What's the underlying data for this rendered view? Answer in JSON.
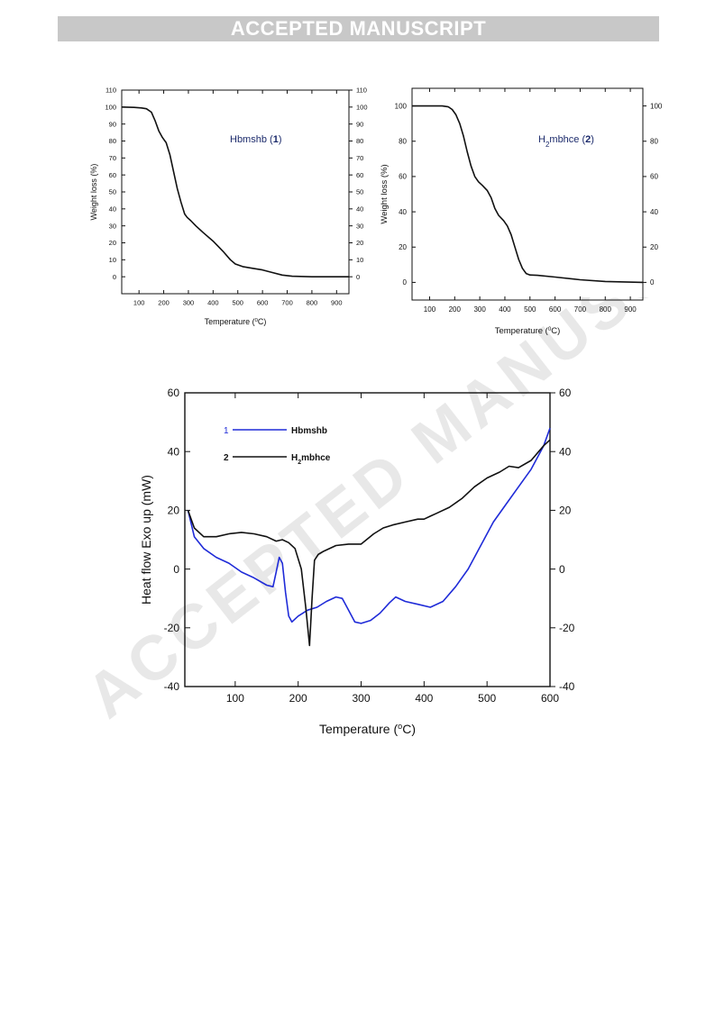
{
  "banner": "ACCEPTED MANUSCRIPT",
  "watermark": "ACCEPTED MANUSCRIPT",
  "colors": {
    "blue": "#1f2bd8",
    "black": "#111111",
    "banner_bg": "#c8c8c8",
    "navy": "#1b2a6b"
  },
  "chart_data": [
    {
      "type": "line",
      "id": "tga1",
      "annotation": {
        "prefix": "Hbmshb (",
        "bold": "1",
        "suffix": ")"
      },
      "xlabel_main": "Temperature (",
      "xlabel_sup": "0",
      "xlabel_end": "C)",
      "ylabel": "Weight loss (%)",
      "xlim": [
        30,
        950
      ],
      "ylim": [
        -10,
        110
      ],
      "xticks": [
        100,
        200,
        300,
        400,
        500,
        600,
        700,
        800,
        900
      ],
      "yticks": [
        0,
        10,
        20,
        30,
        40,
        50,
        60,
        70,
        80,
        90,
        100,
        110
      ],
      "series": [
        {
          "x": [
            30,
            80,
            110,
            130,
            150,
            165,
            180,
            195,
            210,
            225,
            240,
            255,
            270,
            285,
            295,
            310,
            330,
            360,
            400,
            440,
            470,
            490,
            520,
            560,
            600,
            640,
            680,
            720,
            800,
            900,
            950
          ],
          "y": [
            100,
            99.8,
            99.5,
            99,
            97,
            92,
            86,
            82,
            79,
            72,
            62,
            52,
            44,
            37,
            35,
            33,
            30,
            26,
            21,
            15,
            10,
            7.5,
            6,
            5,
            4,
            2.5,
            1,
            0.3,
            0,
            0,
            0
          ]
        }
      ]
    },
    {
      "type": "line",
      "id": "tga2",
      "annotation": {
        "prefix": "H2mbhce (",
        "bold": "2",
        "suffix": ")"
      },
      "xlabel_main": "Temperature (",
      "xlabel_sup": "0",
      "xlabel_end": "C)",
      "ylabel": "Weight loss (%)",
      "xlim": [
        30,
        950
      ],
      "ylim": [
        -10,
        110
      ],
      "xticks": [
        100,
        200,
        300,
        400,
        500,
        600,
        700,
        800,
        900
      ],
      "yticks": [
        0,
        20,
        40,
        60,
        80,
        100
      ],
      "yticks_right": [
        0,
        20,
        40,
        60,
        80,
        100
      ],
      "series": [
        {
          "x": [
            30,
            100,
            150,
            175,
            190,
            205,
            220,
            235,
            250,
            265,
            280,
            295,
            310,
            330,
            345,
            360,
            375,
            395,
            410,
            425,
            440,
            455,
            470,
            485,
            500,
            530,
            600,
            700,
            800,
            950
          ],
          "y": [
            100,
            100,
            100,
            99.5,
            98,
            95,
            90,
            83,
            74,
            66,
            60,
            57,
            55,
            52,
            48,
            42,
            38,
            35,
            32,
            27,
            20,
            13,
            8,
            5,
            4.2,
            4,
            3,
            1.5,
            0.5,
            0
          ]
        }
      ]
    },
    {
      "type": "line",
      "id": "dsc",
      "xlabel_main": "Temperature (",
      "xlabel_sup": "o",
      "xlabel_end": "C)",
      "ylabel": "Heat flow Exo up (mW)",
      "xlim": [
        20,
        600
      ],
      "ylim": [
        -40,
        60
      ],
      "xticks": [
        100,
        200,
        300,
        400,
        500,
        600
      ],
      "yticks": [
        -40,
        -20,
        0,
        20,
        40,
        60
      ],
      "legend": [
        {
          "number": "1",
          "label": "Hbmshb"
        },
        {
          "number": "2",
          "label": "H2mbhce"
        }
      ],
      "series": [
        {
          "name": "Hbmshb",
          "color": "#1f2bd8",
          "x": [
            25,
            35,
            50,
            70,
            90,
            110,
            130,
            150,
            160,
            165,
            170,
            175,
            180,
            185,
            190,
            200,
            215,
            230,
            245,
            260,
            270,
            280,
            290,
            300,
            315,
            330,
            345,
            355,
            370,
            390,
            410,
            430,
            450,
            470,
            490,
            510,
            530,
            550,
            570,
            590,
            600
          ],
          "y": [
            20,
            11,
            7,
            4,
            2,
            -1,
            -3,
            -5.5,
            -6,
            -1,
            4,
            2,
            -8,
            -16,
            -18,
            -16,
            -14,
            -13,
            -11,
            -9.5,
            -10,
            -14,
            -18,
            -18.5,
            -17.5,
            -15,
            -11.5,
            -9.5,
            -11,
            -12,
            -13,
            -11,
            -6,
            0,
            8,
            16,
            22,
            28,
            34,
            42,
            48
          ]
        },
        {
          "name": "H2mbhce",
          "color": "#111111",
          "x": [
            25,
            35,
            50,
            70,
            90,
            110,
            130,
            150,
            165,
            175,
            185,
            195,
            205,
            212,
            218,
            222,
            226,
            232,
            240,
            260,
            280,
            300,
            320,
            335,
            350,
            370,
            390,
            400,
            410,
            420,
            440,
            460,
            480,
            500,
            520,
            535,
            550,
            570,
            590,
            600
          ],
          "y": [
            20,
            14,
            11,
            11,
            12,
            12.5,
            12,
            11,
            9.5,
            10,
            9,
            7,
            0,
            -13,
            -26,
            -10,
            3,
            5,
            6,
            8,
            8.5,
            8.5,
            12,
            14,
            15,
            16,
            17,
            17,
            18,
            19,
            21,
            24,
            28,
            31,
            33,
            35,
            34.5,
            37,
            42,
            44
          ]
        }
      ]
    }
  ]
}
